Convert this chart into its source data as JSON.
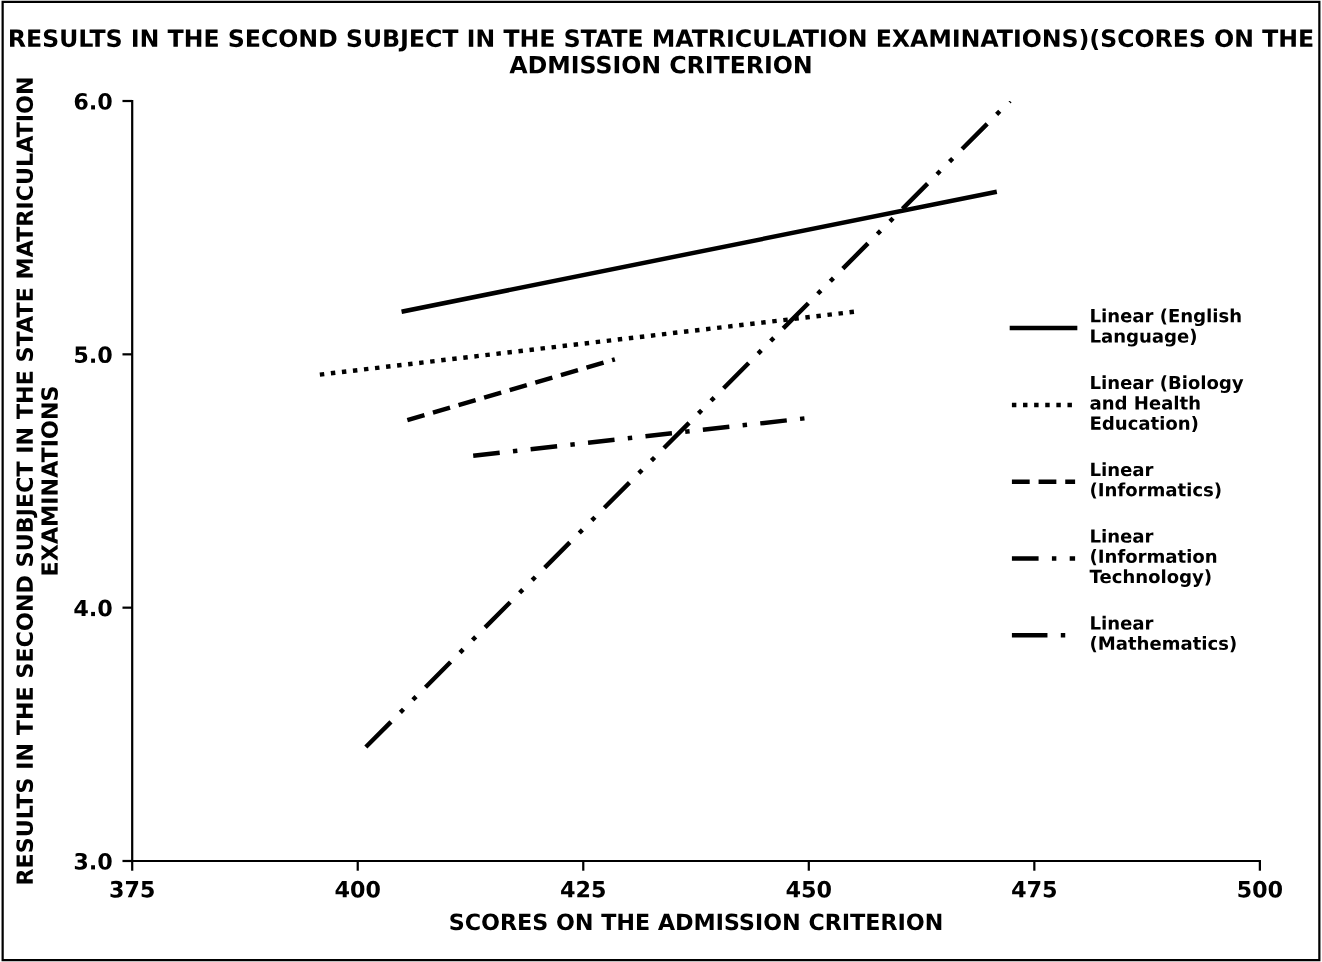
{
  "chart_data": {
    "type": "line",
    "title": "RESULTS IN THE SECOND SUBJECT IN THE STATE MATRICULATION EXAMINATIONS)(SCORES ON THE ADMISSION CRITERION",
    "xlabel": "SCORES ON THE ADMISSION CRITERION",
    "ylabel": "RESULTS IN THE SECOND SUBJECT IN THE STATE MATRICULATION EXAMINATIONS",
    "xlim": [
      375,
      500
    ],
    "xticks": [
      375,
      400,
      425,
      450,
      475,
      500
    ],
    "ylim": [
      3.0,
      6.0
    ],
    "yticks": [
      {
        "value": 3.0,
        "label": "3.0"
      },
      {
        "value": 4.0,
        "label": "4.0"
      },
      {
        "value": 5.0,
        "label": "5.0"
      },
      {
        "value": 6.0,
        "label": "6.0"
      }
    ],
    "grid": false,
    "legend": "right",
    "marker": "none",
    "series": [
      {
        "name": "Linear (English Language)",
        "color": "#000000",
        "line_style": "solid",
        "x": [
          405.1,
          470.6
        ],
        "values": [
          5.17,
          5.64
        ]
      },
      {
        "name": "Linear (Biology and Health Education)",
        "color": "#000000",
        "line_style": "dotted",
        "x": [
          395.8,
          455.5
        ],
        "values": [
          4.92,
          5.17
        ]
      },
      {
        "name": "Linear (Informatics)",
        "color": "#000000",
        "line_style": "dashed",
        "x": [
          405.5,
          428.5
        ],
        "values": [
          4.74,
          4.98
        ]
      },
      {
        "name": "Linear (Information Technology)",
        "color": "#000000",
        "line_style": "dashdot",
        "x": [
          412.8,
          450.2
        ],
        "values": [
          4.6,
          4.75
        ]
      },
      {
        "name": "Linear (Mathematics)",
        "color": "#000000",
        "line_style": "dashdotdot",
        "x": [
          400.9,
          472.3
        ],
        "values": [
          3.45,
          6.0
        ]
      }
    ]
  }
}
